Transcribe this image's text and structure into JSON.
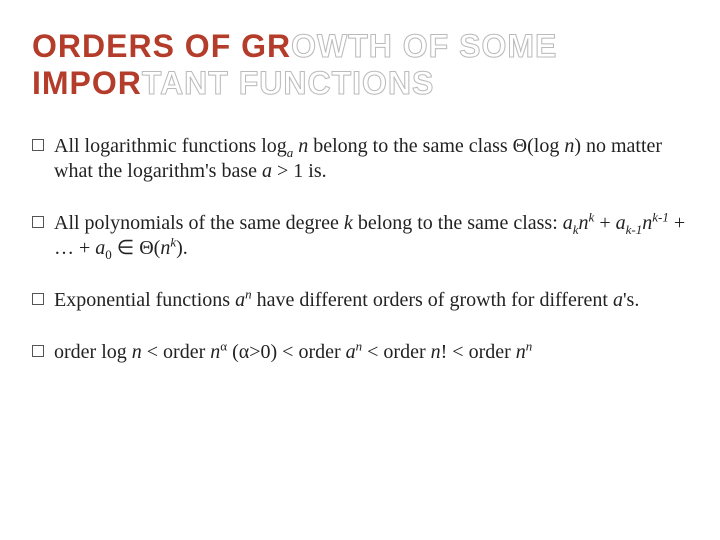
{
  "title": {
    "line1_fill": "ORDERS OF GR",
    "line1_outline": "OWTH OF SOME",
    "line2_fill": "IMPOR",
    "line2_outline": "TANT FUNCTIONS",
    "fill_color": "#b43c2a",
    "outline_color": "#bbbbbb",
    "font_size_pt": 32,
    "font_family": "Trebuchet MS"
  },
  "body": {
    "font_size_pt": 20,
    "text_color": "#222222",
    "bullet_marker": "hollow-square",
    "bullets": [
      {
        "pre1": "All logarithmic functions log",
        "sub1": "a",
        "mid1": " ",
        "ital1": "n",
        "post1": " belong to the same class ",
        "theta1": "Θ",
        "paren_open1": "(log ",
        "ital2": "n",
        "paren_close1": ") no matter what the logarithm's base ",
        "ital3": "a",
        "tail1": " > 1 is."
      },
      {
        "pre1": "All polynomials of the same degree ",
        "ital1": "k",
        "post1": " belong to the same class: ",
        "term_a": "a",
        "sub_k": "k",
        "term_n": "n",
        "sup_k": "k",
        "plus1": " + ",
        "term_a2": "a",
        "sub_k1": "k-1",
        "term_n2": "n",
        "sup_k1": "k-1",
        "plus2": " + … + ",
        "term_a0": "a",
        "sub_0": "0",
        "in": " ∈ ",
        "theta": "Θ",
        "paren_open": "(",
        "term_n3": "n",
        "sup_k3": "k",
        "paren_close": ")."
      },
      {
        "pre1": "Exponential functions ",
        "ital_a": "a",
        "sup_n": "n",
        "post1": " have different orders of growth for different ",
        "ital_a2": "a",
        "tail": "'s."
      },
      {
        "w_order1": "order log ",
        "ital_n1": "n",
        "lt1": "  < order ",
        "ital_n2": "n",
        "sup_alpha": "α",
        "paren": " (",
        "alpha": "α",
        "gt0": ">0)  < order ",
        "ital_a": "a",
        "sup_n": "n",
        "lt3": "  < order ",
        "ital_n3": "n",
        "excl": "! < order ",
        "ital_n4": "n",
        "sup_n2": "n"
      }
    ]
  }
}
